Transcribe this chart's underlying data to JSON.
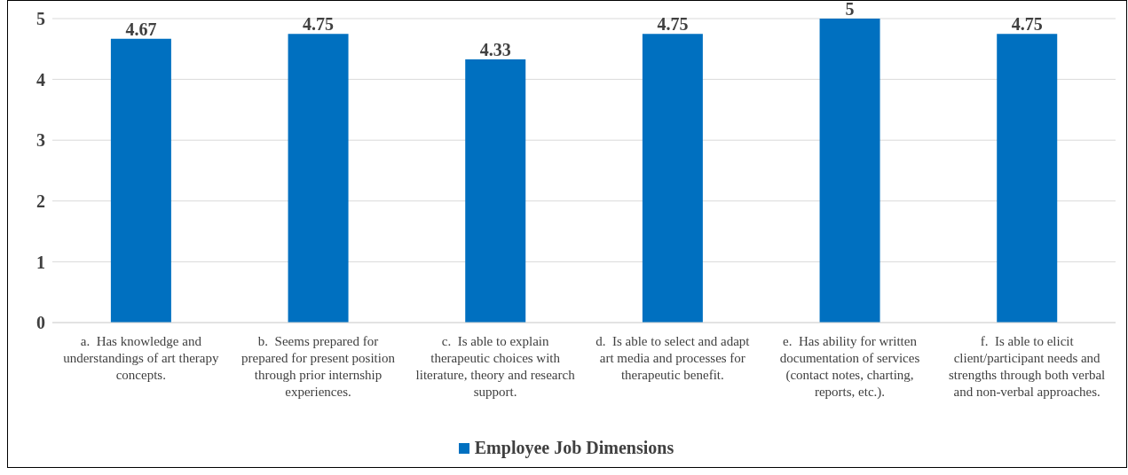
{
  "chart_data": {
    "type": "bar",
    "categories": [
      "a.  Has knowledge and understandings of art therapy concepts.",
      "b.  Seems prepared for prepared for present position through prior internship experiences.",
      "c.  Is able to explain therapeutic choices with literature, theory and research support.",
      "d.  Is able to select and adapt art media and processes for therapeutic benefit.",
      "e.  Has ability for written documentation of services (contact notes, charting, reports, etc.).",
      "f.  Is able to elicit client/participant needs and strengths through both verbal and non-verbal approaches."
    ],
    "series": [
      {
        "name": "Employee Job Dimensions",
        "color": "#0070c0",
        "values": [
          4.67,
          4.75,
          4.33,
          4.75,
          5,
          4.75
        ]
      }
    ],
    "ylim": [
      0,
      5
    ],
    "yticks": [
      0,
      1,
      2,
      3,
      4,
      5
    ],
    "grid": "y",
    "legend": "bottom",
    "data_labels": true
  }
}
